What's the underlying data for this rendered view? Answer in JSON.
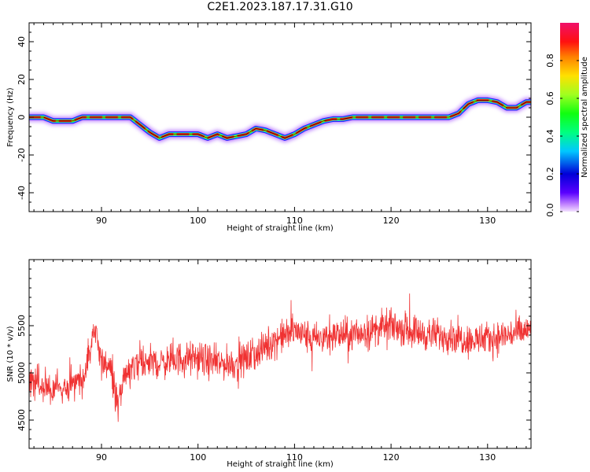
{
  "title": "C2E1.2023.187.17.31.G10",
  "chart_data": [
    {
      "type": "heatmap",
      "title": "C2E1.2023.187.17.31.G10",
      "xlabel": "Height of straight line (km)",
      "ylabel": "Frequency (Hz)",
      "xlim": [
        82.5,
        134.5
      ],
      "ylim": [
        -50,
        50
      ],
      "xticks": [
        90,
        100,
        110,
        120,
        130
      ],
      "yticks": [
        40,
        20,
        0,
        -20,
        -40
      ],
      "ridge_frequency": {
        "height_km": [
          82.5,
          84,
          85,
          87,
          88,
          90,
          92,
          93,
          94,
          95,
          96,
          97,
          98,
          99,
          100,
          101,
          102,
          103,
          104,
          105,
          106,
          107,
          108,
          109,
          110,
          111,
          112,
          113,
          114,
          115,
          116,
          118,
          120,
          122,
          124,
          126,
          127,
          128,
          129,
          130,
          131,
          132,
          133,
          134
        ],
        "freq_hz": [
          0,
          0,
          -2,
          -2,
          0,
          0,
          0,
          0,
          -4,
          -8,
          -11,
          -9,
          -9,
          -9,
          -9,
          -11,
          -9,
          -11,
          -10,
          -9,
          -6,
          -7,
          -9,
          -11,
          -9,
          -6,
          -4,
          -2,
          -1,
          -1,
          0,
          0,
          0,
          0,
          0,
          0,
          2,
          7,
          9,
          9,
          8,
          5,
          5,
          8
        ]
      },
      "colorbar": {
        "label": "Normalized spectral amplitude",
        "range": [
          0.0,
          1.0
        ],
        "ticks": [
          "0.0",
          "0.2",
          "0.4",
          "0.6",
          "0.8"
        ],
        "colormap": "gist_ncar"
      }
    },
    {
      "type": "line",
      "xlabel": "Height of straight line (km)",
      "ylabel": "SNR (10 * v/v)",
      "xlim": [
        82.5,
        134.5
      ],
      "ylim": [
        4200,
        6200
      ],
      "xticks": [
        90,
        100,
        110,
        120,
        130
      ],
      "yticks": [
        4500,
        5000,
        5500
      ],
      "line_color": "#f03232",
      "trend": {
        "height_km": [
          82.5,
          84,
          86,
          88,
          89,
          89.5,
          90,
          91,
          91.7,
          92.5,
          94,
          96,
          98,
          100,
          102,
          104,
          106,
          108,
          110,
          112,
          114,
          116,
          118,
          120,
          122,
          124,
          126,
          128,
          130,
          132,
          134.5
        ],
        "snr": [
          4950,
          4850,
          4850,
          4900,
          5350,
          5450,
          5100,
          5050,
          4650,
          4950,
          5150,
          5100,
          5150,
          5150,
          5100,
          5100,
          5200,
          5350,
          5450,
          5350,
          5400,
          5400,
          5450,
          5500,
          5450,
          5400,
          5400,
          5350,
          5350,
          5400,
          5450
        ]
      },
      "noise_amplitude": 110
    }
  ]
}
